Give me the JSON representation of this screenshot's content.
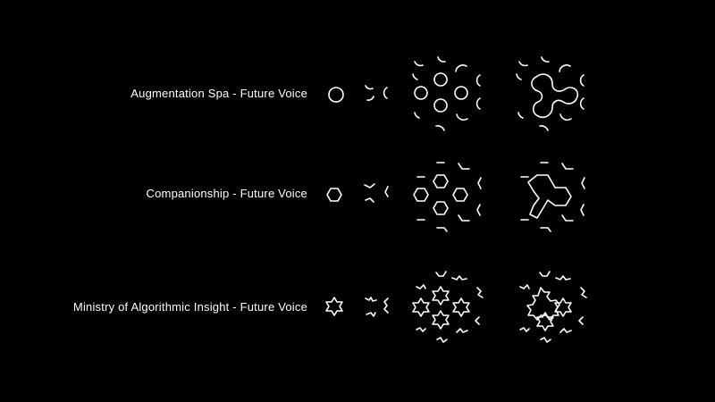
{
  "rows": [
    {
      "label": "Augmentation Spa - Future Voice",
      "shape": "circle"
    },
    {
      "label": "Companionship - Future Voice",
      "shape": "hexagon"
    },
    {
      "label": "Ministry of Algorithmic Insight - Future Voice",
      "shape": "star"
    }
  ],
  "colors": {
    "background": "#000000",
    "stroke": "#ffffff"
  }
}
